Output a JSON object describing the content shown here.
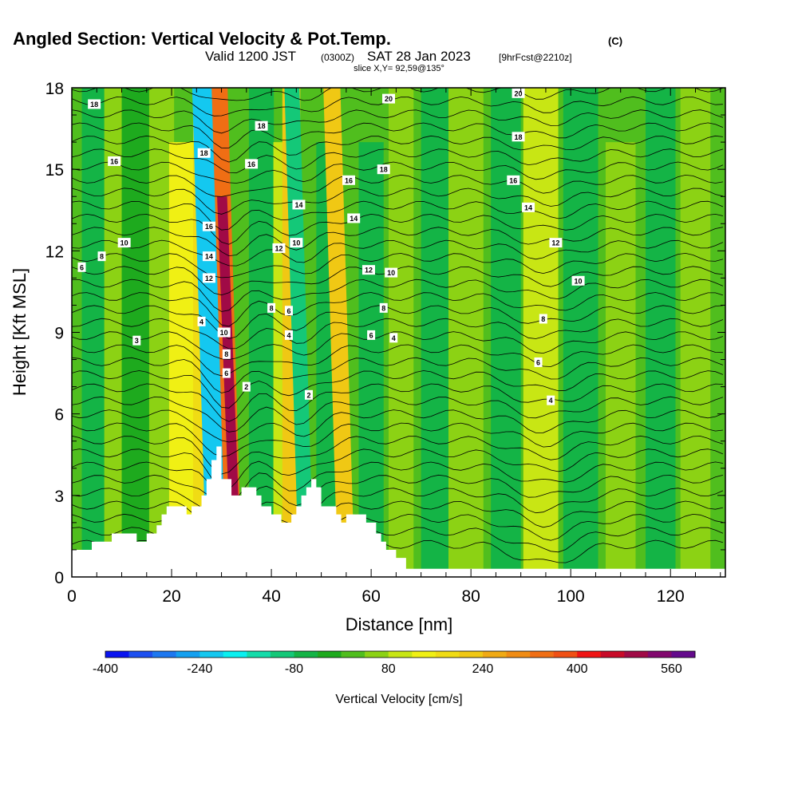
{
  "title": {
    "main": "Angled Section: Vertical Velocity & Pot.Temp.",
    "copyright": "(C)",
    "valid_prefix": "Valid 1200 JST",
    "valid_z": "(0300Z)",
    "valid_date": "SAT 28 Jan 2023",
    "valid_fcst": "[9hrFcst@2210z]",
    "slice": "slice X,Y= 92,59@135°"
  },
  "colors": {
    "colorbar": [
      "#0a14f0",
      "#1e50f0",
      "#1e78f0",
      "#14a0f0",
      "#14c8f0",
      "#0af0f0",
      "#14dcaa",
      "#14c878",
      "#14b446",
      "#1eaa1e",
      "#50be1e",
      "#8cd214",
      "#c8e614",
      "#f0f014",
      "#f0dc14",
      "#f0c814",
      "#f0aa14",
      "#f08c14",
      "#f06e14",
      "#f05014",
      "#f01414",
      "#c80a28",
      "#a00a46",
      "#82086e",
      "#640a8c"
    ],
    "terrain": "#ffffff",
    "contour": "#000000"
  },
  "chart_data": {
    "type": "heatmap",
    "xlabel": "Distance [nm]",
    "ylabel": "Height [Kft MSL]",
    "xlim": [
      0,
      131
    ],
    "ylim": [
      0,
      18
    ],
    "xticks": [
      "0",
      "20",
      "40",
      "60",
      "80",
      "100",
      "120"
    ],
    "yticks": [
      "0",
      "3",
      "6",
      "9",
      "12",
      "15",
      "18"
    ],
    "grid": false,
    "colorbar": {
      "label": "Vertical Velocity [cm/s]",
      "tick_labels": [
        "-400",
        "-240",
        "-80",
        "80",
        "240",
        "400",
        "560"
      ],
      "min": -400,
      "max": 600,
      "step": 40
    },
    "terrain_profile": {
      "x": [
        0,
        4,
        4,
        8,
        8,
        13,
        13,
        15,
        15,
        17,
        17,
        18,
        18,
        19,
        19,
        23,
        23,
        24,
        24,
        26,
        26,
        27,
        27,
        28,
        28,
        29,
        29,
        30,
        30,
        32,
        32,
        34,
        34,
        37,
        37,
        38,
        38,
        40,
        40,
        42,
        42,
        44,
        44,
        45,
        45,
        46,
        46,
        47,
        47,
        48,
        48,
        49,
        49,
        50,
        50,
        53,
        53,
        54,
        54,
        55,
        55,
        59,
        59,
        61,
        61,
        62,
        62,
        63,
        63,
        65,
        65,
        67,
        67,
        71,
        71,
        131
      ],
      "y": [
        1.0,
        1.0,
        1.3,
        1.3,
        1.6,
        1.6,
        1.3,
        1.3,
        1.6,
        1.6,
        1.9,
        1.9,
        2.3,
        2.3,
        2.6,
        2.6,
        2.3,
        2.3,
        2.6,
        2.6,
        3.0,
        3.0,
        3.6,
        3.6,
        4.3,
        4.3,
        4.8,
        4.8,
        3.6,
        3.6,
        3.0,
        3.0,
        3.3,
        3.3,
        3.0,
        3.0,
        2.6,
        2.6,
        2.3,
        2.3,
        2.0,
        2.0,
        2.3,
        2.3,
        2.6,
        2.6,
        3.0,
        3.0,
        3.3,
        3.3,
        3.6,
        3.6,
        3.3,
        3.3,
        2.6,
        2.6,
        2.3,
        2.3,
        2.0,
        2.0,
        2.3,
        2.3,
        2.0,
        2.0,
        1.6,
        1.6,
        1.3,
        1.3,
        1.0,
        1.0,
        0.7,
        0.7,
        0.3,
        0.3,
        0.3,
        0.3
      ]
    },
    "vertical_velocity_bands": [
      {
        "x": 5,
        "width": 3.0,
        "value": -50,
        "ztop": 18
      },
      {
        "x": 9,
        "width": 2.5,
        "value": 40,
        "ztop": 18
      },
      {
        "x": 13,
        "width": 3.0,
        "value": -40,
        "ztop": 18
      },
      {
        "x": 18,
        "width": 2.5,
        "value": 60,
        "ztop": 18
      },
      {
        "x": 22,
        "width": 2.5,
        "value": 120,
        "ztop": 16
      },
      {
        "x": 26,
        "width": 1.7,
        "value": 180,
        "ztop": 18
      },
      {
        "x": 29,
        "width": 2.0,
        "value": -240,
        "ztop": 18
      },
      {
        "x": 32.5,
        "width": 1.6,
        "value": 320,
        "ztop": 18
      },
      {
        "x": 33,
        "width": 1.0,
        "value": 480,
        "ztop": 14
      },
      {
        "x": 38,
        "width": 2.5,
        "value": -60,
        "ztop": 18
      },
      {
        "x": 42,
        "width": 1.6,
        "value": 90,
        "ztop": 16
      },
      {
        "x": 44,
        "width": 1.8,
        "value": 200,
        "ztop": 18
      },
      {
        "x": 47,
        "width": 1.5,
        "value": -120,
        "ztop": 18
      },
      {
        "x": 51,
        "width": 2.0,
        "value": -80,
        "ztop": 16
      },
      {
        "x": 55,
        "width": 1.7,
        "value": 220,
        "ztop": 18
      },
      {
        "x": 60,
        "width": 2.5,
        "value": -60,
        "ztop": 16
      },
      {
        "x": 66,
        "width": 2.5,
        "value": 60,
        "ztop": 18
      },
      {
        "x": 73,
        "width": 3.0,
        "value": -70,
        "ztop": 18
      },
      {
        "x": 79,
        "width": 3.5,
        "value": 70,
        "ztop": 18
      },
      {
        "x": 87,
        "width": 3.0,
        "value": -60,
        "ztop": 18
      },
      {
        "x": 94,
        "width": 3.5,
        "value": 110,
        "ztop": 18
      },
      {
        "x": 102,
        "width": 3.5,
        "value": -80,
        "ztop": 18
      },
      {
        "x": 110,
        "width": 3.0,
        "value": 60,
        "ztop": 16
      },
      {
        "x": 118,
        "width": 3.0,
        "value": -60,
        "ztop": 18
      },
      {
        "x": 125,
        "width": 3.0,
        "value": 60,
        "ztop": 18
      }
    ],
    "pot_temp_contour_labels": [
      {
        "text": "18",
        "x": 4.5,
        "y": 17.4
      },
      {
        "text": "16",
        "x": 8.5,
        "y": 15.3
      },
      {
        "text": "10",
        "x": 10.5,
        "y": 12.3
      },
      {
        "text": "8",
        "x": 6.0,
        "y": 11.8
      },
      {
        "text": "6",
        "x": 2.0,
        "y": 11.4
      },
      {
        "text": "3",
        "x": 13.0,
        "y": 8.7
      },
      {
        "text": "18",
        "x": 26.5,
        "y": 15.6
      },
      {
        "text": "16",
        "x": 27.5,
        "y": 12.9
      },
      {
        "text": "14",
        "x": 27.5,
        "y": 11.8
      },
      {
        "text": "12",
        "x": 27.5,
        "y": 11.0
      },
      {
        "text": "4",
        "x": 26.0,
        "y": 9.4
      },
      {
        "text": "10",
        "x": 30.5,
        "y": 9.0
      },
      {
        "text": "8",
        "x": 31.0,
        "y": 8.2
      },
      {
        "text": "6",
        "x": 31.0,
        "y": 7.5
      },
      {
        "text": "2",
        "x": 35.0,
        "y": 7.0
      },
      {
        "text": "18",
        "x": 38.0,
        "y": 16.6
      },
      {
        "text": "16",
        "x": 36.0,
        "y": 15.2
      },
      {
        "text": "12",
        "x": 41.5,
        "y": 12.1
      },
      {
        "text": "8",
        "x": 40.0,
        "y": 9.9
      },
      {
        "text": "14",
        "x": 45.5,
        "y": 13.7
      },
      {
        "text": "10",
        "x": 45.0,
        "y": 12.3
      },
      {
        "text": "6",
        "x": 43.5,
        "y": 9.8
      },
      {
        "text": "4",
        "x": 43.5,
        "y": 8.9
      },
      {
        "text": "2",
        "x": 47.5,
        "y": 6.7
      },
      {
        "text": "20",
        "x": 63.5,
        "y": 17.6
      },
      {
        "text": "18",
        "x": 62.5,
        "y": 15.0
      },
      {
        "text": "16",
        "x": 55.5,
        "y": 14.6
      },
      {
        "text": "14",
        "x": 56.5,
        "y": 13.2
      },
      {
        "text": "12",
        "x": 59.5,
        "y": 11.3
      },
      {
        "text": "10",
        "x": 64.0,
        "y": 11.2
      },
      {
        "text": "8",
        "x": 62.5,
        "y": 9.9
      },
      {
        "text": "6",
        "x": 60.0,
        "y": 8.9
      },
      {
        "text": "4",
        "x": 64.5,
        "y": 8.8
      },
      {
        "text": "20",
        "x": 89.5,
        "y": 17.8
      },
      {
        "text": "18",
        "x": 89.5,
        "y": 16.2
      },
      {
        "text": "16",
        "x": 88.5,
        "y": 14.6
      },
      {
        "text": "14",
        "x": 91.5,
        "y": 13.6
      },
      {
        "text": "12",
        "x": 97.0,
        "y": 12.3
      },
      {
        "text": "10",
        "x": 101.5,
        "y": 10.9
      },
      {
        "text": "8",
        "x": 94.5,
        "y": 9.5
      },
      {
        "text": "6",
        "x": 93.5,
        "y": 7.9
      },
      {
        "text": "4",
        "x": 96.0,
        "y": 6.5
      }
    ]
  }
}
